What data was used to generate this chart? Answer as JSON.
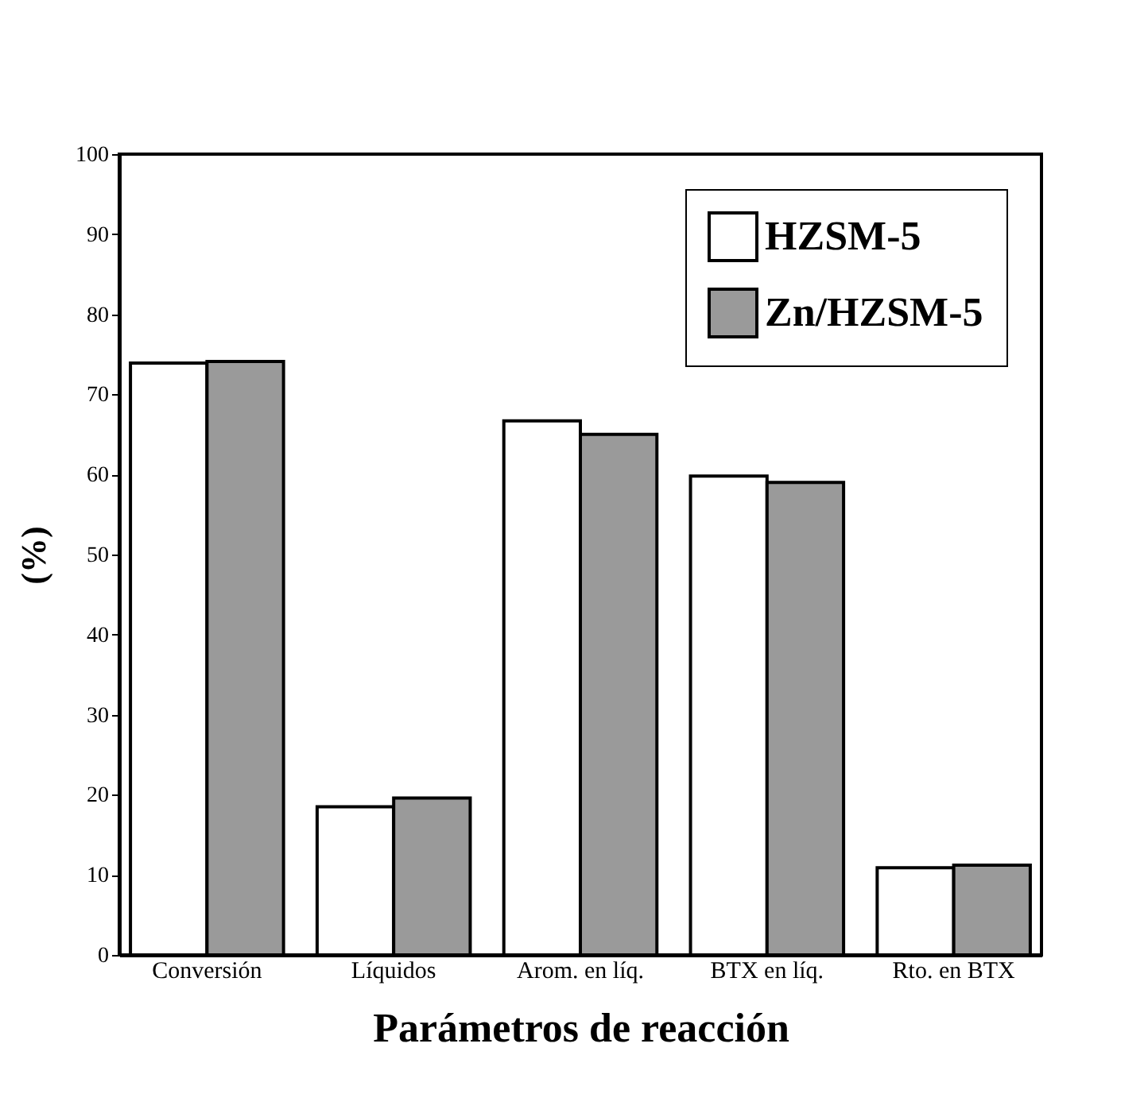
{
  "chart_data": {
    "type": "bar",
    "xlabel": "Parámetros de reacción",
    "ylabel": "(%)",
    "categories": [
      "Conversión",
      "Líquidos",
      "Arom. en líq.",
      "BTX en líq.",
      "Rto. en BTX"
    ],
    "series": [
      {
        "name": "HZSM-5",
        "color": "#ffffff",
        "values": [
          73.9,
          18.5,
          66.7,
          59.8,
          10.9
        ]
      },
      {
        "name": "Zn/HZSM-5",
        "color": "#9a9a9a",
        "values": [
          74.1,
          19.6,
          65.0,
          59.0,
          11.2
        ]
      }
    ],
    "ylim": [
      0,
      100
    ],
    "yticks": [
      0,
      10,
      20,
      30,
      40,
      50,
      60,
      70,
      80,
      90,
      100
    ],
    "grid": false,
    "legend": "top right"
  }
}
